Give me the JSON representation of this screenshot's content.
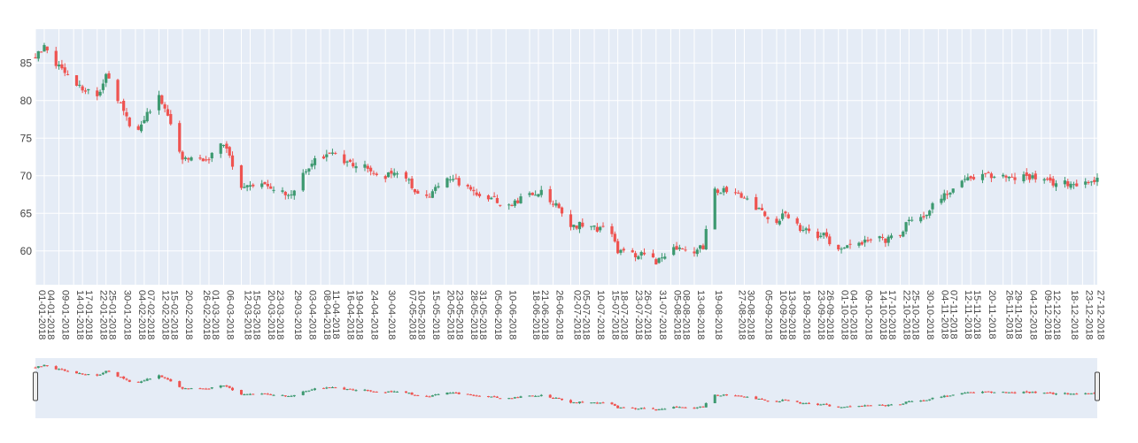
{
  "chart_data": {
    "type": "candlestick",
    "title": "",
    "xlabel": "",
    "ylabel": "",
    "ylim": [
      55.5,
      89.5
    ],
    "y_ticks": [
      60,
      65,
      70,
      75,
      80,
      85
    ],
    "grid": true,
    "range_slider": true,
    "colors": {
      "increasing": "#3d9970",
      "decreasing": "#ef5350",
      "plot_bg": "#e5ecf6",
      "grid": "#ffffff",
      "slider_bg": "#e5ecf6"
    },
    "x_range": [
      "2018-01-01",
      "2018-12-28"
    ],
    "x_tick_labels": [
      "01-01-2018",
      "04-01-2018",
      "09-01-2018",
      "14-01-2018",
      "17-01-2018",
      "22-01-2018",
      "25-01-2018",
      "30-01-2018",
      "04-02-2018",
      "07-02-2018",
      "12-02-2018",
      "15-02-2018",
      "20-02-2018",
      "26-02-2018",
      "01-03-2018",
      "06-03-2018",
      "12-03-2018",
      "15-03-2018",
      "20-03-2018",
      "23-03-2018",
      "29-03-2018",
      "03-04-2018",
      "08-04-2018",
      "11-04-2018",
      "16-04-2018",
      "19-04-2018",
      "24-04-2018",
      "30-04-2018",
      "07-05-2018",
      "10-05-2018",
      "15-05-2018",
      "20-05-2018",
      "23-05-2018",
      "28-05-2018",
      "31-05-2018",
      "05-06-2018",
      "10-06-2018",
      "18-06-2018",
      "21-06-2018",
      "26-06-2018",
      "02-07-2018",
      "05-07-2018",
      "10-07-2018",
      "15-07-2018",
      "18-07-2018",
      "23-07-2018",
      "26-07-2018",
      "31-07-2018",
      "05-08-2018",
      "08-08-2018",
      "13-08-2018",
      "19-08-2018",
      "27-08-2018",
      "30-08-2018",
      "05-09-2018",
      "10-09-2018",
      "13-09-2018",
      "18-09-2018",
      "23-09-2018",
      "26-09-2018",
      "01-10-2018",
      "04-10-2018",
      "09-10-2018",
      "14-10-2018",
      "17-10-2018",
      "22-10-2018",
      "25-10-2018",
      "30-10-2018",
      "04-11-2018",
      "07-11-2018",
      "12-11-2018",
      "15-11-2018",
      "20-11-2018",
      "26-11-2018",
      "29-11-2018",
      "04-12-2018",
      "09-12-2018",
      "12-12-2018",
      "18-12-2018",
      "23-12-2018",
      "27-12-2018"
    ],
    "anchors": [
      [
        "2018-01-01",
        86.0
      ],
      [
        "2018-01-04",
        87.0
      ],
      [
        "2018-01-09",
        84.5
      ],
      [
        "2018-01-14",
        82.5
      ],
      [
        "2018-01-17",
        81.5
      ],
      [
        "2018-01-22",
        80.5
      ],
      [
        "2018-01-25",
        83.5
      ],
      [
        "2018-01-30",
        79.5
      ],
      [
        "2018-02-04",
        75.0
      ],
      [
        "2018-02-07",
        77.5
      ],
      [
        "2018-02-12",
        80.5
      ],
      [
        "2018-02-15",
        78.0
      ],
      [
        "2018-02-20",
        72.5
      ],
      [
        "2018-02-26",
        72.0
      ],
      [
        "2018-03-01",
        72.5
      ],
      [
        "2018-03-06",
        74.5
      ],
      [
        "2018-03-12",
        68.5
      ],
      [
        "2018-03-15",
        68.5
      ],
      [
        "2018-03-20",
        69.0
      ],
      [
        "2018-03-23",
        68.0
      ],
      [
        "2018-03-29",
        67.5
      ],
      [
        "2018-04-03",
        71.0
      ],
      [
        "2018-04-08",
        72.5
      ],
      [
        "2018-04-11",
        73.0
      ],
      [
        "2018-04-16",
        72.0
      ],
      [
        "2018-04-19",
        71.5
      ],
      [
        "2018-04-24",
        71.0
      ],
      [
        "2018-04-30",
        70.0
      ],
      [
        "2018-05-07",
        70.0
      ],
      [
        "2018-05-10",
        67.5
      ],
      [
        "2018-05-15",
        67.5
      ],
      [
        "2018-05-20",
        69.5
      ],
      [
        "2018-05-23",
        69.5
      ],
      [
        "2018-05-28",
        68.5
      ],
      [
        "2018-05-31",
        67.5
      ],
      [
        "2018-06-05",
        67.0
      ],
      [
        "2018-06-10",
        66.0
      ],
      [
        "2018-06-18",
        67.5
      ],
      [
        "2018-06-21",
        68.0
      ],
      [
        "2018-06-26",
        66.5
      ],
      [
        "2018-07-02",
        63.0
      ],
      [
        "2018-07-05",
        63.5
      ],
      [
        "2018-07-10",
        63.0
      ],
      [
        "2018-07-15",
        63.0
      ],
      [
        "2018-07-18",
        60.0
      ],
      [
        "2018-07-23",
        59.5
      ],
      [
        "2018-07-26",
        59.5
      ],
      [
        "2018-07-31",
        58.5
      ],
      [
        "2018-08-05",
        60.0
      ],
      [
        "2018-08-08",
        60.5
      ],
      [
        "2018-08-13",
        60.0
      ],
      [
        "2018-08-16",
        60.5
      ],
      [
        "2018-08-19",
        68.0
      ],
      [
        "2018-08-27",
        68.0
      ],
      [
        "2018-08-30",
        67.0
      ],
      [
        "2018-09-05",
        65.0
      ],
      [
        "2018-09-10",
        64.0
      ],
      [
        "2018-09-13",
        65.0
      ],
      [
        "2018-09-18",
        63.0
      ],
      [
        "2018-09-23",
        62.0
      ],
      [
        "2018-09-26",
        62.0
      ],
      [
        "2018-10-01",
        60.0
      ],
      [
        "2018-10-04",
        60.5
      ],
      [
        "2018-10-09",
        61.0
      ],
      [
        "2018-10-14",
        62.5
      ],
      [
        "2018-10-17",
        61.5
      ],
      [
        "2018-10-22",
        62.0
      ],
      [
        "2018-10-25",
        64.5
      ],
      [
        "2018-10-30",
        64.5
      ],
      [
        "2018-11-04",
        67.0
      ],
      [
        "2018-11-07",
        67.5
      ],
      [
        "2018-11-12",
        69.5
      ],
      [
        "2018-11-15",
        69.5
      ],
      [
        "2018-11-20",
        70.0
      ],
      [
        "2018-11-26",
        70.0
      ],
      [
        "2018-11-29",
        69.5
      ],
      [
        "2018-12-04",
        70.0
      ],
      [
        "2018-12-09",
        69.5
      ],
      [
        "2018-12-12",
        69.0
      ],
      [
        "2018-12-18",
        69.0
      ],
      [
        "2018-12-23",
        69.0
      ],
      [
        "2018-12-28",
        69.5
      ]
    ]
  }
}
